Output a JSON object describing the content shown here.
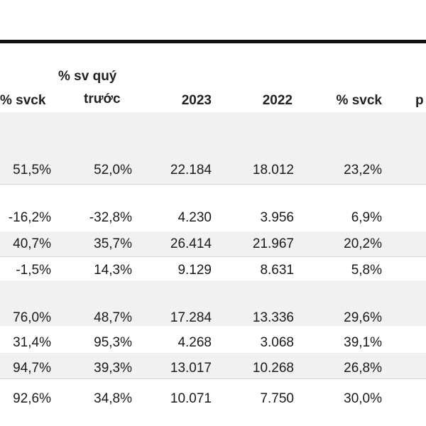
{
  "columns": [
    {
      "key": "svck_prev",
      "label": "% svck"
    },
    {
      "key": "sv_quy_truoc",
      "label_line1": "% sv quý",
      "label_line2": "trước"
    },
    {
      "key": "y2023",
      "label": "2023"
    },
    {
      "key": "y2022",
      "label": "2022"
    },
    {
      "key": "svck",
      "label": "% svck"
    },
    {
      "key": "cut",
      "label": "p"
    }
  ],
  "rows": [
    {
      "cells": [
        "51,5%",
        "52,0%",
        "22.184",
        "18.012",
        "23,2%"
      ]
    },
    {
      "cells": [
        "-16,2%",
        "-32,8%",
        "4.230",
        "3.956",
        "6,9%"
      ]
    },
    {
      "cells": [
        "40,7%",
        "35,7%",
        "26.414",
        "21.967",
        "20,2%"
      ]
    },
    {
      "cells": [
        "-1,5%",
        "14,3%",
        "9.129",
        "8.631",
        "5,8%"
      ]
    },
    {
      "cells": [
        "76,0%",
        "48,7%",
        "17.284",
        "13.336",
        "29,6%"
      ]
    },
    {
      "cells": [
        "31,4%",
        "95,3%",
        "4.268",
        "3.068",
        "39,1%"
      ]
    },
    {
      "cells": [
        "94,7%",
        "39,3%",
        "13.017",
        "10.268",
        "26,8%"
      ]
    },
    {
      "cells": [
        "92,6%",
        "34,8%",
        "10.071",
        "7.750",
        "30,0%"
      ]
    }
  ],
  "colors": {
    "band": "#f1f1f1",
    "rule": "#111111",
    "text": "#1a1a1a"
  }
}
